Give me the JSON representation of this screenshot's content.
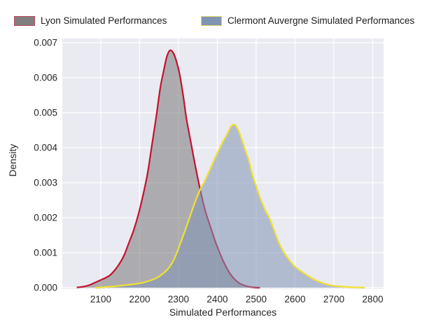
{
  "legend": {
    "items": [
      {
        "label": "Lyon Simulated Performances",
        "fill": "#7f7f7f",
        "edge": "#c0465a"
      },
      {
        "label": "Clermont Auvergne Simulated Performances",
        "fill": "#8094b4",
        "edge": "#e3d85a"
      }
    ]
  },
  "chart_data": {
    "type": "area",
    "title": "",
    "xlabel": "Simulated Performances",
    "ylabel": "Density",
    "xlim": [
      2001,
      2828
    ],
    "ylim": [
      -4e-05,
      0.00712
    ],
    "grid": true,
    "legend_position": "top",
    "plot_background": "#eaeaf2",
    "gridline_color": "#ffffff",
    "tick_label_color": "#262626",
    "x_ticks": [
      2100,
      2200,
      2300,
      2400,
      2500,
      2600,
      2700,
      2800
    ],
    "y_tick_values": [
      0,
      0.001,
      0.002,
      0.003,
      0.004,
      0.005,
      0.006,
      0.007
    ],
    "y_tick_labels": [
      "0.000",
      "0.001",
      "0.002",
      "0.003",
      "0.004",
      "0.005",
      "0.006",
      "0.007"
    ],
    "series": [
      {
        "name": "Lyon Simulated Performances",
        "line_color": "#c3122f",
        "fill_color": "#7f7f7f",
        "fill_alpha": 0.58,
        "points": [
          [
            2040,
            1e-05
          ],
          [
            2056,
            3e-05
          ],
          [
            2072,
            8e-05
          ],
          [
            2086,
            0.00015
          ],
          [
            2100,
            0.00022
          ],
          [
            2112,
            0.00028
          ],
          [
            2124,
            0.00036
          ],
          [
            2136,
            0.0005
          ],
          [
            2149,
            0.0007
          ],
          [
            2161,
            0.00095
          ],
          [
            2173,
            0.0013
          ],
          [
            2185,
            0.00165
          ],
          [
            2197,
            0.0021
          ],
          [
            2209,
            0.00265
          ],
          [
            2221,
            0.0033
          ],
          [
            2232,
            0.0041
          ],
          [
            2243,
            0.0049
          ],
          [
            2253,
            0.0057
          ],
          [
            2262,
            0.0062
          ],
          [
            2270,
            0.0066
          ],
          [
            2278,
            0.00678
          ],
          [
            2286,
            0.00672
          ],
          [
            2294,
            0.0065
          ],
          [
            2303,
            0.0061
          ],
          [
            2312,
            0.0055
          ],
          [
            2321,
            0.0048
          ],
          [
            2331,
            0.0042
          ],
          [
            2343,
            0.0035
          ],
          [
            2356,
            0.0028
          ],
          [
            2369,
            0.0022
          ],
          [
            2382,
            0.00175
          ],
          [
            2394,
            0.00135
          ],
          [
            2406,
            0.001
          ],
          [
            2418,
            0.0007
          ],
          [
            2430,
            0.00045
          ],
          [
            2442,
            0.00027
          ],
          [
            2454,
            0.00015
          ],
          [
            2466,
            8e-05
          ],
          [
            2480,
            3e-05
          ],
          [
            2495,
            1e-05
          ],
          [
            2508,
            0
          ]
        ]
      },
      {
        "name": "Clermont Auvergne Simulated Performances",
        "line_color": "#f0e130",
        "fill_color": "#8094b4",
        "fill_alpha": 0.55,
        "points": [
          [
            2088,
            0
          ],
          [
            2112,
            2e-05
          ],
          [
            2136,
            4e-05
          ],
          [
            2160,
            7e-05
          ],
          [
            2184,
            0.0001
          ],
          [
            2206,
            0.00014
          ],
          [
            2226,
            0.0002
          ],
          [
            2244,
            0.00028
          ],
          [
            2260,
            0.0004
          ],
          [
            2274,
            0.00055
          ],
          [
            2286,
            0.00075
          ],
          [
            2296,
            0.001
          ],
          [
            2306,
            0.0013
          ],
          [
            2316,
            0.0016
          ],
          [
            2327,
            0.00195
          ],
          [
            2338,
            0.0023
          ],
          [
            2348,
            0.0026
          ],
          [
            2358,
            0.00285
          ],
          [
            2370,
            0.0031
          ],
          [
            2382,
            0.0034
          ],
          [
            2394,
            0.0037
          ],
          [
            2406,
            0.00398
          ],
          [
            2416,
            0.0042
          ],
          [
            2426,
            0.0044
          ],
          [
            2436,
            0.00462
          ],
          [
            2446,
            0.00465
          ],
          [
            2455,
            0.00448
          ],
          [
            2464,
            0.0042
          ],
          [
            2473,
            0.0039
          ],
          [
            2482,
            0.0036
          ],
          [
            2491,
            0.0032
          ],
          [
            2500,
            0.0029
          ],
          [
            2512,
            0.00252
          ],
          [
            2524,
            0.0022
          ],
          [
            2534,
            0.002
          ],
          [
            2546,
            0.00165
          ],
          [
            2558,
            0.0013
          ],
          [
            2572,
            0.001
          ],
          [
            2586,
            0.00078
          ],
          [
            2600,
            0.0006
          ],
          [
            2618,
            0.00045
          ],
          [
            2636,
            0.00032
          ],
          [
            2654,
            0.00021
          ],
          [
            2672,
            0.00013
          ],
          [
            2692,
            7e-05
          ],
          [
            2714,
            4e-05
          ],
          [
            2736,
            2e-05
          ],
          [
            2758,
            1e-05
          ],
          [
            2778,
            0
          ]
        ]
      }
    ]
  }
}
